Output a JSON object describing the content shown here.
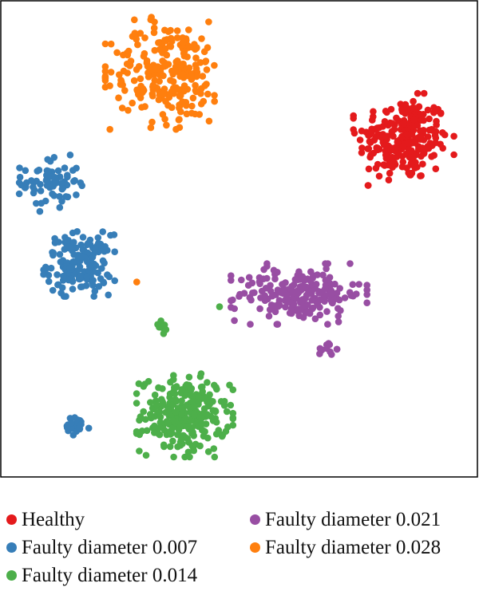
{
  "chart_data": {
    "type": "scatter",
    "title": "",
    "xlabel": "",
    "ylabel": "",
    "xlim": [
      0,
      100
    ],
    "ylim": [
      0,
      100
    ],
    "grid": false,
    "axes_ticks": false,
    "legend_position": "bottom",
    "series": [
      {
        "name": "Healthy",
        "color": "#e41a1c",
        "clusters": [
          {
            "center": [
              84.5,
              71.0
            ],
            "spread": [
              4.8,
              4.4
            ],
            "count": 240
          }
        ]
      },
      {
        "name": "Faulty diameter 0.007",
        "color": "#377eb8",
        "clusters": [
          {
            "center": [
              10.3,
              61.8
            ],
            "spread": [
              3.0,
              2.7
            ],
            "count": 70
          },
          {
            "center": [
              16.3,
              44.8
            ],
            "spread": [
              3.4,
              3.1
            ],
            "count": 160
          },
          {
            "center": [
              15.5,
              10.5
            ],
            "spread": [
              1.6,
              1.0
            ],
            "count": 25
          }
        ]
      },
      {
        "name": "Faulty diameter 0.014",
        "color": "#4daf4a",
        "clusters": [
          {
            "center": [
              38.5,
              13.0
            ],
            "spread": [
              4.6,
              4.0
            ],
            "count": 250
          },
          {
            "center": [
              33.4,
              31.8
            ],
            "spread": [
              0.6,
              0.9
            ],
            "count": 8
          },
          {
            "center": [
              45.8,
              35.8
            ],
            "spread": [
              0.3,
              0.3
            ],
            "count": 1
          }
        ]
      },
      {
        "name": "Faulty diameter 0.021",
        "color": "#984ea3",
        "clusters": [
          {
            "center": [
              62.5,
              38.5
            ],
            "spread": [
              6.5,
              2.9
            ],
            "count": 200
          },
          {
            "center": [
              68.5,
              27.0
            ],
            "spread": [
              0.9,
              0.7
            ],
            "count": 12
          }
        ]
      },
      {
        "name": "Faulty diameter 0.028",
        "color": "#ff7f0e",
        "clusters": [
          {
            "center": [
              35.0,
              85.0
            ],
            "spread": [
              6.0,
              5.4
            ],
            "count": 240
          },
          {
            "center": [
              28.4,
              41.0
            ],
            "spread": [
              0.2,
              0.2
            ],
            "count": 1
          }
        ]
      }
    ]
  },
  "legend": {
    "items": [
      {
        "label": "Healthy",
        "color": "#e41a1c"
      },
      {
        "label": "Faulty diameter 0.021",
        "color": "#984ea3"
      },
      {
        "label": "Faulty diameter 0.007",
        "color": "#377eb8"
      },
      {
        "label": "Faulty diameter 0.028",
        "color": "#ff7f0e"
      },
      {
        "label": "Faulty diameter 0.014",
        "color": "#4daf4a"
      }
    ]
  }
}
